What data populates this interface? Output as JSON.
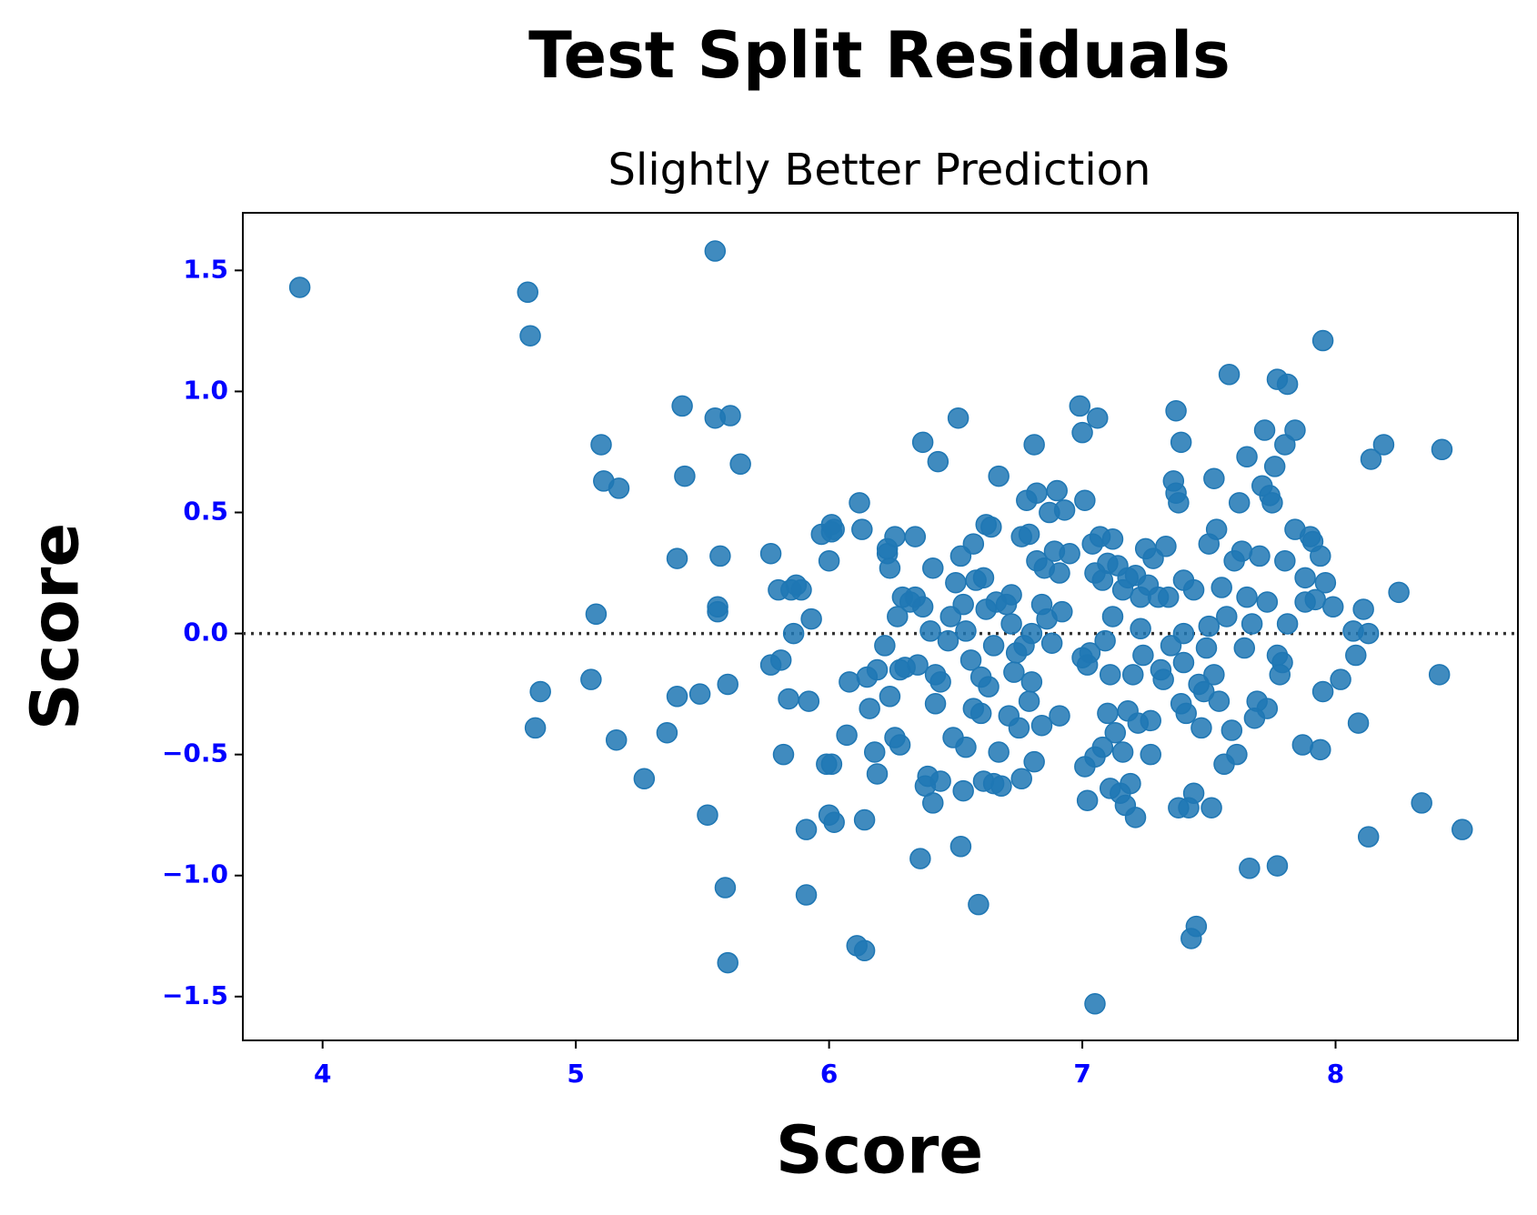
{
  "chart_data": {
    "type": "scatter",
    "title": "Test Split Residuals",
    "subtitle": "Slightly Better Prediction",
    "x_label": "Score",
    "y_label": "Score",
    "color": "#1f77b4",
    "tick_color": "#0000ff",
    "reference_line": 0,
    "xlim": [
      3.685,
      8.72
    ],
    "ylim": [
      -1.681,
      1.738
    ],
    "xticks": [
      4,
      5,
      6,
      7,
      8
    ],
    "yticks": [
      {
        "value": -1.5,
        "label": "−1.5"
      },
      {
        "value": -1.0,
        "label": "−1.0"
      },
      {
        "value": -0.5,
        "label": "−0.5"
      },
      {
        "value": 0,
        "label": "0.0"
      },
      {
        "value": 0.5,
        "label": "0.5"
      },
      {
        "value": 1.0,
        "label": "1.0"
      },
      {
        "value": 1.5,
        "label": "1.5"
      }
    ],
    "x": [
      3.91,
      4.81,
      4.82,
      5.55,
      4.84,
      4.86,
      5.06,
      5.08,
      5.1,
      5.11,
      5.17,
      5.16,
      5.27,
      5.36,
      5.4,
      5.4,
      5.42,
      5.43,
      5.49,
      5.52,
      5.55,
      5.56,
      5.56,
      5.57,
      5.59,
      5.6,
      5.6,
      5.61,
      5.65,
      5.77,
      5.77,
      5.8,
      5.81,
      5.82,
      5.84,
      5.85,
      5.86,
      5.87,
      5.89,
      5.91,
      5.91,
      5.92,
      5.93,
      5.97,
      5.99,
      6.0,
      6.0,
      6.01,
      6.01,
      6.01,
      6.02,
      6.02,
      6.07,
      6.08,
      6.11,
      6.12,
      6.13,
      6.14,
      6.14,
      6.15,
      6.16,
      6.18,
      6.19,
      6.19,
      6.22,
      6.23,
      6.23,
      6.24,
      6.24,
      6.26,
      6.26,
      6.27,
      6.28,
      6.28,
      6.29,
      6.3,
      6.32,
      6.34,
      6.34,
      6.35,
      6.36,
      6.37,
      6.37,
      6.38,
      6.39,
      6.4,
      6.41,
      6.41,
      6.42,
      6.42,
      6.43,
      6.44,
      6.44,
      6.47,
      6.48,
      6.49,
      6.5,
      6.51,
      6.52,
      6.52,
      6.53,
      6.53,
      6.54,
      6.54,
      6.56,
      6.57,
      6.57,
      6.58,
      6.59,
      6.6,
      6.6,
      6.61,
      6.61,
      6.62,
      6.62,
      6.63,
      6.64,
      6.65,
      6.65,
      6.66,
      6.67,
      6.67,
      6.68,
      6.7,
      6.71,
      6.72,
      6.72,
      6.73,
      6.74,
      6.75,
      6.76,
      6.76,
      6.77,
      6.78,
      6.79,
      6.79,
      6.8,
      6.8,
      6.81,
      6.81,
      6.82,
      6.82,
      6.84,
      6.84,
      6.85,
      6.86,
      6.87,
      6.88,
      6.89,
      6.9,
      6.91,
      6.91,
      6.92,
      6.93,
      6.95,
      6.99,
      7.0,
      7.0,
      7.01,
      7.01,
      7.02,
      7.02,
      7.03,
      7.04,
      7.05,
      7.05,
      7.05,
      7.06,
      7.07,
      7.08,
      7.08,
      7.09,
      7.1,
      7.1,
      7.11,
      7.11,
      7.12,
      7.12,
      7.13,
      7.14,
      7.15,
      7.16,
      7.16,
      7.17,
      7.18,
      7.18,
      7.19,
      7.2,
      7.21,
      7.21,
      7.22,
      7.23,
      7.23,
      7.24,
      7.25,
      7.26,
      7.27,
      7.27,
      7.28,
      7.3,
      7.31,
      7.32,
      7.33,
      7.34,
      7.35,
      7.36,
      7.37,
      7.37,
      7.38,
      7.38,
      7.39,
      7.39,
      7.4,
      7.4,
      7.4,
      7.41,
      7.42,
      7.43,
      7.44,
      7.44,
      7.45,
      7.46,
      7.47,
      7.48,
      7.49,
      7.5,
      7.5,
      7.51,
      7.52,
      7.52,
      7.53,
      7.54,
      7.55,
      7.56,
      7.57,
      7.58,
      7.59,
      7.6,
      7.61,
      7.62,
      7.63,
      7.64,
      7.65,
      7.65,
      7.66,
      7.67,
      7.68,
      7.69,
      7.7,
      7.71,
      7.72,
      7.73,
      7.73,
      7.74,
      7.75,
      7.76,
      7.77,
      7.77,
      7.77,
      7.78,
      7.79,
      7.8,
      7.8,
      7.81,
      7.81,
      7.84,
      7.84,
      7.87,
      7.88,
      7.88,
      7.9,
      7.91,
      7.92,
      7.94,
      7.94,
      7.95,
      7.95,
      7.96,
      7.99,
      8.02,
      8.07,
      8.08,
      8.09,
      8.11,
      8.13,
      8.13,
      8.14,
      8.19,
      8.25,
      8.34,
      8.41,
      8.42,
      8.5
    ],
    "y": [
      1.43,
      1.41,
      1.23,
      1.58,
      -0.39,
      -0.24,
      -0.19,
      0.08,
      0.78,
      0.63,
      0.6,
      -0.44,
      -0.6,
      -0.41,
      -0.26,
      0.31,
      0.94,
      0.65,
      -0.25,
      -0.75,
      0.89,
      0.11,
      0.09,
      0.32,
      -1.05,
      -1.36,
      -0.21,
      0.9,
      0.7,
      0.33,
      -0.13,
      0.18,
      -0.11,
      -0.5,
      -0.27,
      0.18,
      0.0,
      0.2,
      0.18,
      -0.81,
      -1.08,
      -0.28,
      0.06,
      0.41,
      -0.54,
      -0.75,
      0.3,
      0.45,
      0.42,
      -0.54,
      -0.78,
      0.43,
      -0.42,
      -0.2,
      -1.29,
      0.54,
      0.43,
      -0.77,
      -1.31,
      -0.18,
      -0.31,
      -0.49,
      -0.58,
      -0.15,
      -0.05,
      0.33,
      0.35,
      0.27,
      -0.26,
      0.4,
      -0.43,
      0.07,
      -0.46,
      -0.15,
      0.15,
      -0.14,
      0.13,
      0.4,
      0.15,
      -0.13,
      -0.93,
      0.79,
      0.11,
      -0.63,
      -0.59,
      0.01,
      -0.7,
      0.27,
      -0.17,
      -0.29,
      0.71,
      -0.61,
      -0.2,
      -0.03,
      0.07,
      -0.43,
      0.21,
      0.89,
      0.32,
      -0.88,
      -0.65,
      0.12,
      -0.47,
      0.01,
      -0.11,
      0.37,
      -0.31,
      0.22,
      -1.12,
      -0.18,
      -0.33,
      0.23,
      -0.61,
      0.1,
      0.45,
      -0.22,
      0.44,
      -0.05,
      -0.62,
      0.13,
      -0.49,
      0.65,
      -0.63,
      0.12,
      -0.34,
      0.04,
      0.16,
      -0.16,
      -0.08,
      -0.39,
      -0.6,
      0.4,
      -0.05,
      0.55,
      0.41,
      -0.28,
      0.0,
      -0.2,
      -0.53,
      0.78,
      0.58,
      0.3,
      -0.38,
      0.12,
      0.27,
      0.06,
      0.5,
      -0.04,
      0.34,
      0.59,
      -0.34,
      0.25,
      0.09,
      0.51,
      0.33,
      0.94,
      0.83,
      -0.1,
      0.55,
      -0.55,
      -0.13,
      -0.69,
      -0.08,
      0.37,
      -1.53,
      -0.51,
      0.25,
      0.89,
      0.4,
      -0.47,
      0.22,
      -0.03,
      -0.33,
      0.29,
      -0.64,
      -0.17,
      0.07,
      0.39,
      -0.41,
      0.28,
      -0.66,
      0.18,
      -0.49,
      -0.71,
      -0.32,
      0.23,
      -0.62,
      -0.17,
      -0.76,
      0.24,
      -0.37,
      0.15,
      0.02,
      -0.09,
      0.35,
      0.2,
      -0.36,
      -0.5,
      0.31,
      0.15,
      -0.15,
      -0.19,
      0.36,
      0.15,
      -0.05,
      0.63,
      0.92,
      0.58,
      0.54,
      -0.72,
      0.79,
      -0.29,
      0.0,
      0.22,
      -0.12,
      -0.33,
      -0.72,
      -1.26,
      0.18,
      -0.66,
      -1.21,
      -0.21,
      -0.39,
      -0.24,
      -0.06,
      0.37,
      0.03,
      -0.72,
      -0.17,
      0.64,
      0.43,
      -0.28,
      0.19,
      -0.54,
      0.07,
      1.07,
      -0.4,
      0.3,
      -0.5,
      0.54,
      0.34,
      -0.06,
      0.73,
      0.15,
      -0.97,
      0.04,
      -0.35,
      -0.28,
      0.32,
      0.61,
      0.84,
      0.13,
      -0.31,
      0.57,
      0.54,
      0.69,
      -0.96,
      1.05,
      -0.09,
      -0.17,
      -0.12,
      0.3,
      0.78,
      1.03,
      0.04,
      0.84,
      0.43,
      -0.46,
      0.23,
      0.13,
      0.4,
      0.38,
      0.14,
      0.32,
      -0.48,
      1.21,
      -0.24,
      0.21,
      0.11,
      -0.19,
      0.01,
      -0.09,
      -0.37,
      0.1,
      0.0,
      -0.84,
      0.72,
      0.78,
      0.17,
      -0.7,
      -0.17,
      0.76,
      -0.81
    ]
  }
}
